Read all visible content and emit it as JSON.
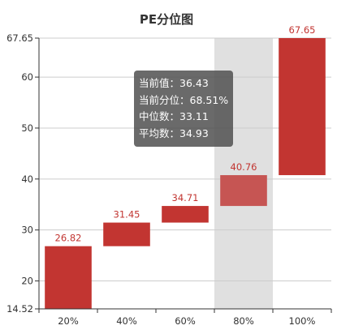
{
  "chart_data": {
    "type": "bar",
    "subtype": "waterfall-range",
    "title": "PE分位图",
    "categories": [
      "20%",
      "40%",
      "60%",
      "80%",
      "100%"
    ],
    "ranges": [
      {
        "low": 14.52,
        "high": 26.82
      },
      {
        "low": 26.82,
        "high": 31.45
      },
      {
        "low": 31.45,
        "high": 34.71
      },
      {
        "low": 34.71,
        "high": 40.76
      },
      {
        "low": 40.76,
        "high": 67.65
      }
    ],
    "bar_labels": [
      "26.82",
      "31.45",
      "34.71",
      "40.76",
      "67.65"
    ],
    "y_ticks": [
      "14.52",
      "20",
      "30",
      "40",
      "50",
      "60",
      "67.65"
    ],
    "ylim": [
      14.52,
      67.65
    ],
    "highlighted_index": 3,
    "grid": true,
    "colors": {
      "bar": "#c23531",
      "bar_highlight": "#c65553",
      "highlight_band": "#e0e0e0",
      "axis": "#333333",
      "grid": "#cccccc"
    },
    "tooltip": [
      {
        "label": "当前值：",
        "value": "36.43"
      },
      {
        "label": "当前分位：",
        "value": "68.51%"
      },
      {
        "label": "中位数：",
        "value": "33.11"
      },
      {
        "label": "平均数：",
        "value": "34.93"
      }
    ]
  }
}
